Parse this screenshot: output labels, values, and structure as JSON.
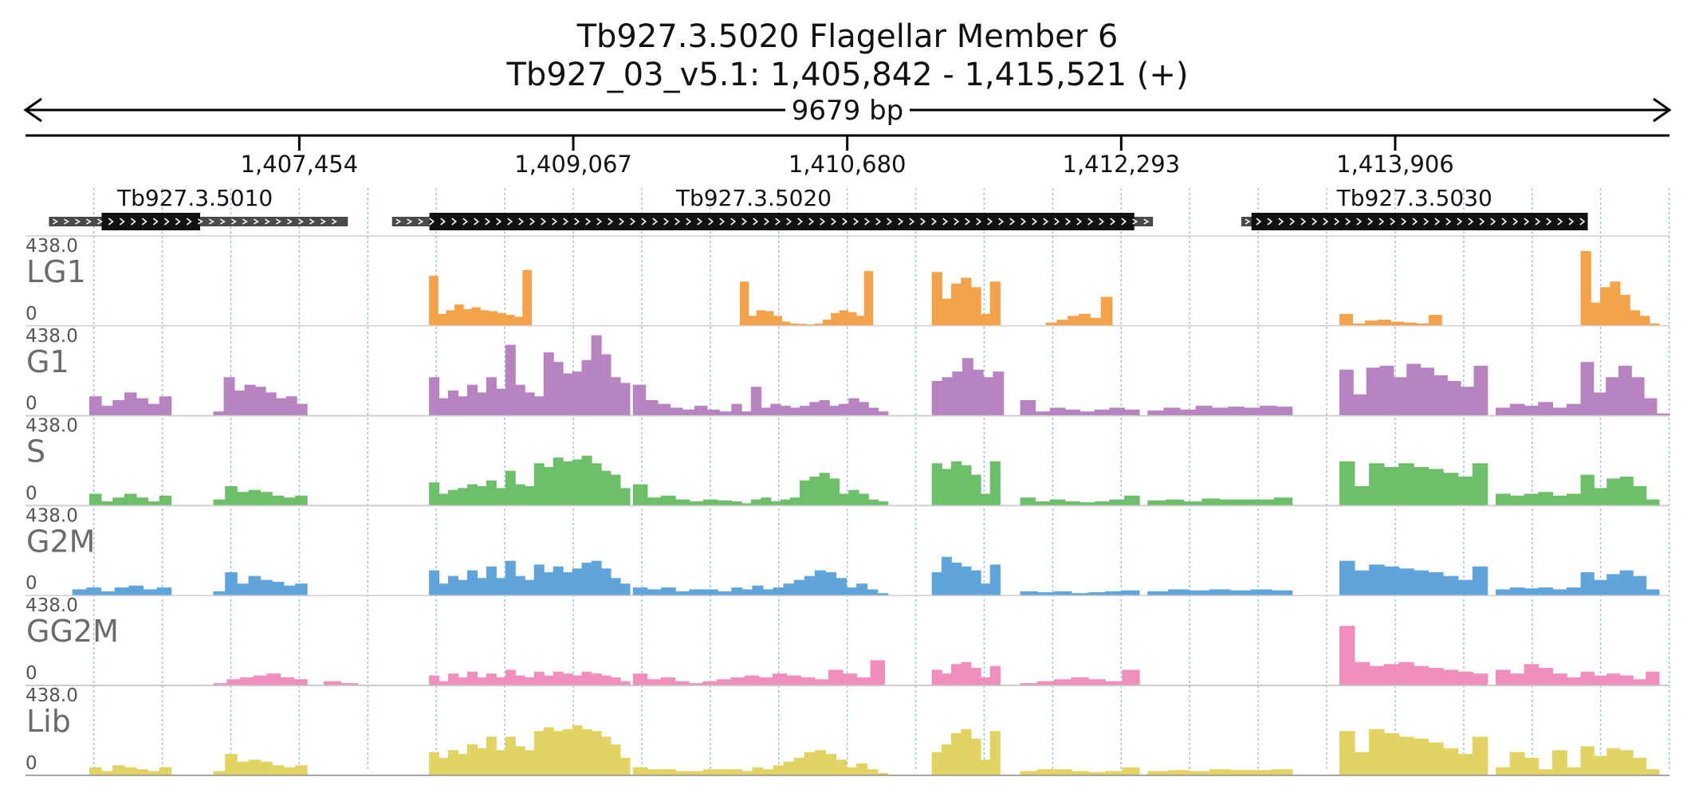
{
  "header": {
    "title_line1": "Tb927.3.5020  Flagellar Member 6",
    "title_line2": "Tb927_03_v5.1: 1,405,842 - 1,415,521 (+)",
    "span_label": "9679 bp"
  },
  "chart_data": {
    "type": "area",
    "title": "Tb927.3.5020  Flagellar Member 6",
    "subtitle": "Tb927_03_v5.1: 1,405,842 - 1,415,521 (+)",
    "region": {
      "chromosome": "Tb927_03_v5.1",
      "start": 1405842,
      "end": 1415521,
      "strand": "+",
      "length_bp": 9679
    },
    "x_ticks": [
      {
        "pos": 1407454,
        "label": "1,407,454"
      },
      {
        "pos": 1409067,
        "label": "1,409,067"
      },
      {
        "pos": 1410680,
        "label": "1,410,680"
      },
      {
        "pos": 1412293,
        "label": "1,412,293"
      },
      {
        "pos": 1413906,
        "label": "1,413,906"
      }
    ],
    "genes": [
      {
        "name": "Tb927.3.5010",
        "utr_start": 1405980,
        "utr_end": 1407740,
        "cds_start": 1406290,
        "cds_end": 1406870,
        "label_pos": 1406840
      },
      {
        "name": "Tb927.3.5020",
        "utr_start": 1408000,
        "utr_end": 1412480,
        "cds_start": 1408220,
        "cds_end": 1412370,
        "label_pos": 1410130
      },
      {
        "name": "Tb927.3.5030",
        "utr_start": 1413000,
        "utr_end": 1415040,
        "cds_start": 1413060,
        "cds_end": 1415040,
        "label_pos": 1414020
      }
    ],
    "y_range": [
      0,
      438.0
    ],
    "y_max_label": "438.0",
    "y_min_label": "0",
    "series": [
      {
        "name": "LG1",
        "color": "#f5a34a",
        "segments": [
          {
            "start": 1408220,
            "end": 1408820,
            "values": [
              260,
              60,
              80,
              110,
              85,
              95,
              80,
              75,
              65,
              55,
              45,
              290
            ]
          },
          {
            "start": 1410050,
            "end": 1410830,
            "values": [
              230,
              50,
              80,
              75,
              50,
              20,
              10,
              8,
              5,
              10,
              30,
              65,
              80,
              70,
              50,
              285
            ]
          },
          {
            "start": 1411180,
            "end": 1411580,
            "values": [
              280,
              140,
              220,
              250,
              200,
              60,
              230
            ]
          },
          {
            "start": 1411850,
            "end": 1412240,
            "values": [
              15,
              30,
              50,
              60,
              40,
              150
            ]
          },
          {
            "start": 1413580,
            "end": 1414180,
            "values": [
              60,
              10,
              25,
              30,
              20,
              15,
              10,
              55
            ]
          },
          {
            "start": 1415000,
            "end": 1415460,
            "values": [
              390,
              120,
              200,
              230,
              160,
              80,
              50,
              10
            ]
          }
        ]
      },
      {
        "name": "G1",
        "color": "#b783c0",
        "segments": [
          {
            "start": 1406220,
            "end": 1406700,
            "values": [
              100,
              50,
              80,
              120,
              90,
              60,
              100
            ]
          },
          {
            "start": 1406950,
            "end": 1407500,
            "values": [
              20,
              200,
              130,
              160,
              150,
              120,
              90,
              100,
              60
            ]
          },
          {
            "start": 1408220,
            "end": 1409400,
            "values": [
              200,
              90,
              130,
              100,
              160,
              120,
              200,
              140,
              370,
              160,
              120,
              100,
              330,
              280,
              220,
              230,
              290,
              420,
              320,
              200,
              170
            ]
          },
          {
            "start": 1409420,
            "end": 1410000,
            "values": [
              160,
              80,
              60,
              40,
              30,
              50,
              30,
              20
            ]
          },
          {
            "start": 1410000,
            "end": 1410920,
            "values": [
              60,
              20,
              150,
              40,
              60,
              50,
              40,
              50,
              70,
              80,
              50,
              60,
              90,
              70,
              40,
              20
            ]
          },
          {
            "start": 1411180,
            "end": 1411600,
            "values": [
              180,
              200,
              230,
              300,
              240,
              200,
              230
            ]
          },
          {
            "start": 1411700,
            "end": 1412400,
            "values": [
              80,
              20,
              40,
              30,
              20,
              30,
              40,
              30
            ]
          },
          {
            "start": 1412450,
            "end": 1413300,
            "values": [
              25,
              40,
              30,
              50,
              40,
              45,
              40,
              50,
              45
            ]
          },
          {
            "start": 1413580,
            "end": 1414450,
            "values": [
              240,
              110,
              250,
              260,
              200,
              270,
              250,
              210,
              180,
              150,
              260
            ]
          },
          {
            "start": 1414500,
            "end": 1415000,
            "values": [
              40,
              60,
              50,
              70,
              40,
              60
            ]
          },
          {
            "start": 1415000,
            "end": 1415520,
            "values": [
              280,
              120,
              200,
              260,
              200,
              90,
              10
            ]
          }
        ]
      },
      {
        "name": "S",
        "color": "#6dbf6a",
        "segments": [
          {
            "start": 1406220,
            "end": 1406700,
            "values": [
              60,
              20,
              40,
              60,
              40,
              20,
              50
            ]
          },
          {
            "start": 1406950,
            "end": 1407500,
            "values": [
              30,
              100,
              70,
              80,
              70,
              50,
              40,
              50
            ]
          },
          {
            "start": 1408220,
            "end": 1409400,
            "values": [
              120,
              60,
              80,
              90,
              110,
              100,
              130,
              90,
              180,
              110,
              100,
              220,
              200,
              250,
              230,
              240,
              260,
              220,
              180,
              160,
              90
            ]
          },
          {
            "start": 1409420,
            "end": 1410000,
            "values": [
              110,
              40,
              50,
              30,
              20,
              30,
              25
            ]
          },
          {
            "start": 1410000,
            "end": 1410920,
            "values": [
              20,
              10,
              30,
              40,
              20,
              30,
              40,
              130,
              150,
              170,
              140,
              60,
              80,
              60,
              30,
              20
            ]
          },
          {
            "start": 1411180,
            "end": 1411580,
            "values": [
              220,
              190,
              230,
              210,
              160,
              60,
              230
            ]
          },
          {
            "start": 1411700,
            "end": 1412400,
            "values": [
              40,
              20,
              30,
              20,
              15,
              20,
              30,
              50
            ]
          },
          {
            "start": 1412450,
            "end": 1413300,
            "values": [
              25,
              30,
              20,
              35,
              30,
              30,
              30,
              40
            ]
          },
          {
            "start": 1413580,
            "end": 1414450,
            "values": [
              230,
              100,
              220,
              200,
              220,
              200,
              190,
              170,
              150,
              220
            ]
          },
          {
            "start": 1414500,
            "end": 1415000,
            "values": [
              60,
              50,
              60,
              70,
              50,
              60
            ]
          },
          {
            "start": 1415000,
            "end": 1415460,
            "values": [
              160,
              90,
              140,
              150,
              100,
              30
            ]
          }
        ]
      },
      {
        "name": "G2M",
        "color": "#5fa5db",
        "segments": [
          {
            "start": 1406120,
            "end": 1406700,
            "values": [
              30,
              40,
              20,
              40,
              50,
              30,
              40
            ]
          },
          {
            "start": 1406950,
            "end": 1407500,
            "values": [
              20,
              120,
              60,
              100,
              80,
              70,
              50,
              60
            ]
          },
          {
            "start": 1408220,
            "end": 1409400,
            "values": [
              130,
              60,
              100,
              80,
              130,
              90,
              150,
              90,
              180,
              100,
              80,
              160,
              120,
              150,
              120,
              140,
              170,
              180,
              140,
              90,
              60
            ]
          },
          {
            "start": 1409420,
            "end": 1410000,
            "values": [
              40,
              30,
              40,
              20,
              30,
              30,
              20
            ]
          },
          {
            "start": 1410000,
            "end": 1410920,
            "values": [
              40,
              30,
              50,
              30,
              40,
              60,
              80,
              100,
              130,
              120,
              90,
              40,
              60,
              30,
              10
            ]
          },
          {
            "start": 1411180,
            "end": 1411580,
            "values": [
              120,
              200,
              170,
              150,
              130,
              60,
              160
            ]
          },
          {
            "start": 1411700,
            "end": 1412400,
            "values": [
              20,
              15,
              20,
              10,
              15,
              20,
              25
            ]
          },
          {
            "start": 1412450,
            "end": 1413300,
            "values": [
              20,
              30,
              25,
              30,
              25,
              30,
              25
            ]
          },
          {
            "start": 1413580,
            "end": 1414450,
            "values": [
              180,
              130,
              160,
              150,
              140,
              130,
              120,
              100,
              80,
              150
            ]
          },
          {
            "start": 1414500,
            "end": 1415000,
            "values": [
              30,
              40,
              35,
              40,
              30,
              40
            ]
          },
          {
            "start": 1415000,
            "end": 1415460,
            "values": [
              120,
              80,
              110,
              130,
              100,
              30
            ]
          }
        ]
      },
      {
        "name": "GG2M",
        "color": "#f08fbe",
        "segments": [
          {
            "start": 1406950,
            "end": 1407500,
            "values": [
              10,
              30,
              40,
              50,
              60,
              40,
              30
            ]
          },
          {
            "start": 1407600,
            "end": 1407800,
            "values": [
              20,
              10
            ]
          },
          {
            "start": 1408220,
            "end": 1409400,
            "values": [
              50,
              20,
              60,
              40,
              70,
              40,
              60,
              40,
              80,
              50,
              40,
              70,
              50,
              70,
              60,
              50,
              70,
              60,
              50,
              40,
              20
            ]
          },
          {
            "start": 1409420,
            "end": 1410900,
            "values": [
              60,
              30,
              40,
              20,
              10,
              20,
              30,
              40,
              50,
              40,
              60,
              50,
              40,
              30,
              80,
              60,
              40,
              130
            ]
          },
          {
            "start": 1411180,
            "end": 1411580,
            "values": [
              80,
              60,
              110,
              120,
              90,
              40,
              100
            ]
          },
          {
            "start": 1411700,
            "end": 1412400,
            "values": [
              10,
              20,
              30,
              40,
              30,
              20,
              80
            ]
          },
          {
            "start": 1413580,
            "end": 1414450,
            "values": [
              310,
              120,
              100,
              110,
              120,
              100,
              90,
              80,
              70,
              60
            ]
          },
          {
            "start": 1414500,
            "end": 1415000,
            "values": [
              80,
              60,
              110,
              90,
              60,
              40
            ]
          },
          {
            "start": 1415000,
            "end": 1415460,
            "values": [
              70,
              50,
              60,
              50,
              30,
              70
            ]
          }
        ]
      },
      {
        "name": "Lib",
        "color": "#e2d462",
        "segments": [
          {
            "start": 1406220,
            "end": 1406700,
            "values": [
              40,
              20,
              50,
              40,
              30,
              20,
              40
            ]
          },
          {
            "start": 1406950,
            "end": 1407500,
            "values": [
              20,
              110,
              70,
              80,
              70,
              50,
              40,
              50
            ]
          },
          {
            "start": 1408220,
            "end": 1409400,
            "values": [
              120,
              90,
              130,
              110,
              160,
              140,
              200,
              130,
              200,
              150,
              130,
              230,
              250,
              230,
              240,
              260,
              240,
              230,
              200,
              160,
              90
            ]
          },
          {
            "start": 1409420,
            "end": 1410000,
            "values": [
              40,
              30,
              30,
              20,
              20,
              30,
              30
            ]
          },
          {
            "start": 1410000,
            "end": 1410920,
            "values": [
              30,
              20,
              40,
              30,
              50,
              70,
              90,
              120,
              130,
              110,
              80,
              40,
              60,
              30,
              10
            ]
          },
          {
            "start": 1411180,
            "end": 1411580,
            "values": [
              120,
              160,
              220,
              240,
              190,
              80,
              230
            ]
          },
          {
            "start": 1411700,
            "end": 1412400,
            "values": [
              20,
              30,
              30,
              20,
              15,
              20,
              40
            ]
          },
          {
            "start": 1412450,
            "end": 1413300,
            "values": [
              20,
              25,
              20,
              30,
              25,
              25,
              30
            ]
          },
          {
            "start": 1413580,
            "end": 1414450,
            "values": [
              230,
              120,
              240,
              220,
              200,
              190,
              170,
              140,
              110,
              200
            ]
          },
          {
            "start": 1414500,
            "end": 1415000,
            "values": [
              40,
              120,
              90,
              30,
              130,
              40
            ]
          },
          {
            "start": 1415000,
            "end": 1415460,
            "values": [
              150,
              100,
              140,
              130,
              90,
              30
            ]
          }
        ]
      }
    ]
  }
}
